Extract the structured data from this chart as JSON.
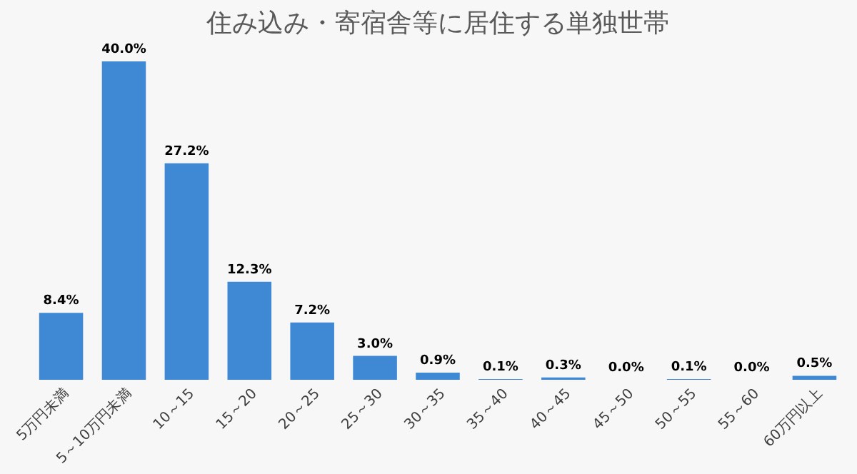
{
  "chart_data": {
    "type": "bar",
    "title": "住み込み・寄宿舎等に居住する単独世帯",
    "categories": [
      "5万円未満",
      "5～10万円未満",
      "10～15",
      "15～20",
      "20～25",
      "25～30",
      "30～35",
      "35～40",
      "40～45",
      "45～50",
      "50～55",
      "55～60",
      "60万円以上"
    ],
    "values": [
      8.4,
      40.0,
      27.2,
      12.3,
      7.2,
      3.0,
      0.9,
      0.1,
      0.3,
      0.0,
      0.1,
      0.0,
      0.5
    ],
    "value_labels": [
      "8.4%",
      "40.0%",
      "27.2%",
      "12.3%",
      "7.2%",
      "3.0%",
      "0.9%",
      "0.1%",
      "0.3%",
      "0.0%",
      "0.1%",
      "0.0%",
      "0.5%"
    ],
    "color": "#3f88d4",
    "grid": false
  }
}
